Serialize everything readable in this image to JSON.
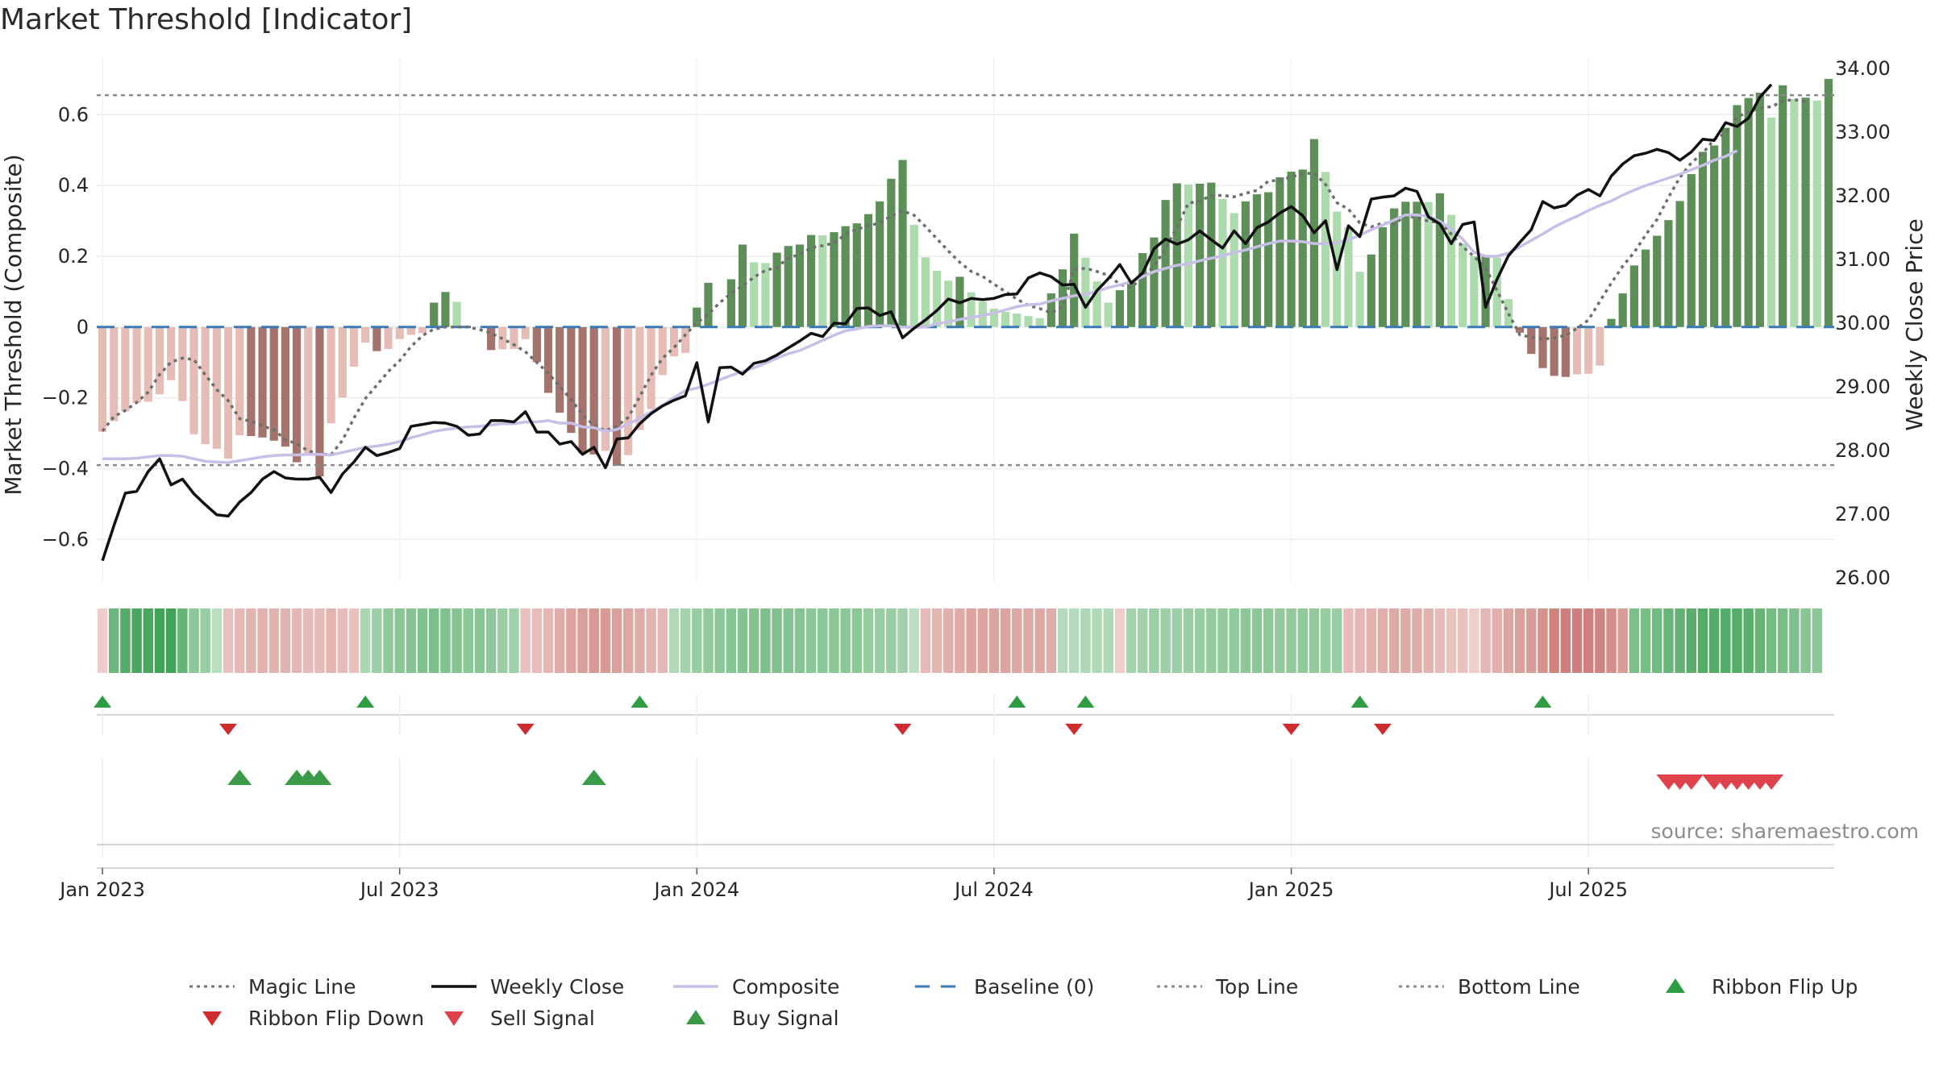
{
  "chart_data": {
    "type": "bar",
    "title": "Market Threshold [Indicator]",
    "ylabel_left": "Market Threshold (Composite)",
    "ylabel_right": "Weekly Close Price",
    "source": "source: sharemaestro.com",
    "ylim_left": [
      -0.72,
      0.76
    ],
    "ylim_right": [
      26.0,
      34.0
    ],
    "left_ticks": [
      {
        "value": 0.6,
        "label": "0.6"
      },
      {
        "value": 0.4,
        "label": "0.4"
      },
      {
        "value": 0.2,
        "label": "0.2"
      },
      {
        "value": 0.0,
        "label": "0"
      },
      {
        "value": -0.2,
        "label": "−0.2"
      },
      {
        "value": -0.4,
        "label": "−0.4"
      },
      {
        "value": -0.6,
        "label": "−0.6"
      }
    ],
    "right_ticks": [
      {
        "value": 34,
        "label": "34.00"
      },
      {
        "value": 33,
        "label": "33.00"
      },
      {
        "value": 32,
        "label": "32.00"
      },
      {
        "value": 31,
        "label": "31.00"
      },
      {
        "value": 30,
        "label": "30.00"
      },
      {
        "value": 29,
        "label": "29.00"
      },
      {
        "value": 28,
        "label": "28.00"
      },
      {
        "value": 27,
        "label": "27.00"
      },
      {
        "value": 26,
        "label": "26.00"
      }
    ],
    "x_ticks": [
      {
        "week": 0.5,
        "label": "Jan 2023"
      },
      {
        "week": 26.5,
        "label": "Jul 2023"
      },
      {
        "week": 52.5,
        "label": "Jan 2024"
      },
      {
        "week": 78.5,
        "label": "Jul 2024"
      },
      {
        "week": 104.5,
        "label": "Jan 2025"
      },
      {
        "week": 130.5,
        "label": "Jul 2025"
      }
    ],
    "top_line": 0.655,
    "bottom_line": -0.39,
    "baseline": 0,
    "composite": [
      -0.296,
      -0.266,
      -0.238,
      -0.214,
      -0.211,
      -0.19,
      -0.15,
      -0.209,
      -0.303,
      -0.331,
      -0.344,
      -0.372,
      -0.306,
      -0.308,
      -0.312,
      -0.321,
      -0.338,
      -0.382,
      -0.356,
      -0.422,
      -0.272,
      -0.199,
      -0.112,
      -0.044,
      -0.068,
      -0.062,
      -0.034,
      -0.022,
      -0.017,
      0.069,
      0.099,
      0.071,
      0.0,
      0.0,
      -0.065,
      -0.063,
      -0.062,
      -0.034,
      -0.099,
      -0.186,
      -0.242,
      -0.299,
      -0.357,
      -0.36,
      -0.35,
      -0.392,
      -0.362,
      -0.291,
      -0.232,
      -0.136,
      -0.083,
      -0.073,
      0.055,
      0.125,
      0.0,
      0.135,
      0.233,
      0.183,
      0.181,
      0.21,
      0.229,
      0.233,
      0.26,
      0.259,
      0.268,
      0.285,
      0.293,
      0.319,
      0.355,
      0.419,
      0.472,
      0.289,
      0.197,
      0.159,
      0.131,
      0.142,
      0.098,
      0.072,
      0.052,
      0.043,
      0.038,
      0.031,
      0.025,
      0.095,
      0.163,
      0.264,
      0.196,
      0.129,
      0.069,
      0.104,
      0.125,
      0.209,
      0.253,
      0.359,
      0.406,
      0.403,
      0.405,
      0.408,
      0.362,
      0.322,
      0.355,
      0.375,
      0.381,
      0.423,
      0.439,
      0.445,
      0.531,
      0.438,
      0.326,
      0.282,
      0.156,
      0.205,
      0.282,
      0.335,
      0.354,
      0.354,
      0.353,
      0.378,
      0.317,
      0.236,
      0.2,
      0.2,
      0.196,
      0.079,
      -0.016,
      -0.076,
      -0.116,
      -0.138,
      -0.141,
      -0.134,
      -0.132,
      -0.109,
      0.023,
      0.095,
      0.174,
      0.219,
      0.258,
      0.302,
      0.356,
      0.432,
      0.495,
      0.513,
      0.563,
      0.627,
      0.647,
      0.662,
      0.592,
      0.683,
      0.644,
      0.648,
      0.64,
      0.701
    ],
    "composite_state": [
      "sell",
      "sell",
      "sell",
      "sell",
      "sell",
      "sell",
      "sell",
      "sell",
      "sell",
      "sell",
      "sell",
      "sell",
      "bear",
      "bear",
      "bear",
      "bear",
      "bear",
      "bear",
      "bear",
      "bear",
      "bear",
      "bear",
      "bear",
      "bear",
      "bear",
      "bear",
      "bear",
      "bear",
      "bear",
      "bull",
      "bull",
      "bull",
      "neutral",
      "neutral",
      "bear",
      "bear",
      "bear",
      "bear",
      "bear",
      "bear",
      "bear",
      "bear",
      "bear",
      "bear",
      "bear",
      "bear",
      "bear",
      "bear",
      "bear",
      "bear",
      "bear",
      "bear",
      "bull",
      "bull",
      "neutral",
      "bull",
      "bull",
      "bull",
      "bull",
      "bull",
      "bull",
      "bull",
      "bull",
      "bull",
      "bull",
      "bull",
      "bull",
      "bull",
      "bull",
      "bull",
      "bull",
      "bull",
      "bull",
      "bull",
      "bull",
      "bull",
      "bull",
      "bull",
      "bull",
      "bull",
      "bull",
      "bull",
      "bull",
      "bull",
      "bull",
      "bull",
      "bull",
      "bull",
      "bull",
      "bull",
      "bull",
      "bull",
      "bull",
      "bull",
      "bull",
      "bull",
      "bull",
      "bull",
      "bull",
      "bull",
      "bull",
      "bull",
      "bull",
      "bull",
      "bull",
      "bull",
      "bull",
      "bull",
      "bull",
      "bull",
      "bull",
      "bull",
      "bull",
      "bull",
      "bull",
      "bull",
      "bull",
      "bull",
      "bull",
      "bull",
      "bull",
      "bull",
      "bull",
      "bull",
      "bear",
      "bear",
      "bear",
      "bear",
      "bear",
      "bear",
      "bear",
      "bear",
      "bull",
      "bull",
      "bull",
      "bull",
      "bull",
      "bull",
      "bull",
      "bull",
      "bull",
      "bull",
      "bull",
      "bull",
      "bull",
      "bull",
      "bull",
      "bull",
      "bull",
      "bull",
      "bull",
      "bull"
    ],
    "weekly_close": [
      26.27,
      26.82,
      27.33,
      27.36,
      27.67,
      27.87,
      27.46,
      27.55,
      27.32,
      27.15,
      26.99,
      26.97,
      27.19,
      27.34,
      27.55,
      27.67,
      27.57,
      27.55,
      27.55,
      27.58,
      27.34,
      27.63,
      27.82,
      28.05,
      27.92,
      27.97,
      28.03,
      28.38,
      28.41,
      28.44,
      28.43,
      28.38,
      28.24,
      28.26,
      28.47,
      28.47,
      28.45,
      28.61,
      28.29,
      28.29,
      28.1,
      28.14,
      27.94,
      28.05,
      27.73,
      28.18,
      28.2,
      28.42,
      28.58,
      28.7,
      28.79,
      28.86,
      29.38,
      28.45,
      29.3,
      29.31,
      29.2,
      29.37,
      29.41,
      29.5,
      29.61,
      29.72,
      29.84,
      29.79,
      30.0,
      29.99,
      30.23,
      30.24,
      30.12,
      30.18,
      29.77,
      29.92,
      30.05,
      30.2,
      30.38,
      30.32,
      30.39,
      30.37,
      30.39,
      30.45,
      30.46,
      30.71,
      30.79,
      30.73,
      30.6,
      30.61,
      30.25,
      30.51,
      30.7,
      30.92,
      30.63,
      30.79,
      31.17,
      31.32,
      31.24,
      31.31,
      31.45,
      31.31,
      31.18,
      31.45,
      31.25,
      31.5,
      31.59,
      31.73,
      31.83,
      31.69,
      31.42,
      31.61,
      30.84,
      31.53,
      31.36,
      31.95,
      31.98,
      32.0,
      32.12,
      32.07,
      31.67,
      31.56,
      31.25,
      31.55,
      31.59,
      30.25,
      30.69,
      31.06,
      31.27,
      31.47,
      31.91,
      31.81,
      31.85,
      32.01,
      32.1,
      32.0,
      32.31,
      32.5,
      32.63,
      32.67,
      32.73,
      32.68,
      32.56,
      32.69,
      32.89,
      32.87,
      33.15,
      33.09,
      33.22,
      33.55,
      33.75
    ],
    "composite_line": [
      27.87,
      27.87,
      27.87,
      27.88,
      27.9,
      27.92,
      27.92,
      27.91,
      27.87,
      27.83,
      27.82,
      27.81,
      27.84,
      27.87,
      27.9,
      27.92,
      27.93,
      27.93,
      27.94,
      27.94,
      27.93,
      27.97,
      28.01,
      28.05,
      28.07,
      28.1,
      28.14,
      28.2,
      28.25,
      28.3,
      28.33,
      28.35,
      28.37,
      28.38,
      28.4,
      28.42,
      28.42,
      28.45,
      28.45,
      28.47,
      28.43,
      28.43,
      28.37,
      28.36,
      28.3,
      28.33,
      28.42,
      28.5,
      28.61,
      28.71,
      28.83,
      28.94,
      28.98,
      29.04,
      29.11,
      29.18,
      29.24,
      29.3,
      29.37,
      29.45,
      29.52,
      29.57,
      29.65,
      29.73,
      29.81,
      29.88,
      29.91,
      29.95,
      29.96,
      29.96,
      29.94,
      29.93,
      29.94,
      29.99,
      30.02,
      30.06,
      30.09,
      30.12,
      30.16,
      30.21,
      30.26,
      30.29,
      30.3,
      30.35,
      30.39,
      30.43,
      30.45,
      30.5,
      30.56,
      30.6,
      30.65,
      30.73,
      30.81,
      30.86,
      30.91,
      30.93,
      30.98,
      31.02,
      31.06,
      31.11,
      31.15,
      31.2,
      31.25,
      31.29,
      31.29,
      31.28,
      31.25,
      31.25,
      31.26,
      31.31,
      31.38,
      31.47,
      31.54,
      31.62,
      31.7,
      31.7,
      31.68,
      31.6,
      31.48,
      31.32,
      31.11,
      31.05,
      31.05,
      31.1,
      31.2,
      31.3,
      31.4,
      31.51,
      31.6,
      31.68,
      31.77,
      31.85,
      31.92,
      32.01,
      32.09,
      32.16,
      32.22,
      32.28,
      32.34,
      32.41,
      32.48,
      32.56,
      32.62,
      32.71
    ],
    "magic_line": [
      -0.294,
      -0.253,
      -0.236,
      -0.213,
      -0.184,
      -0.134,
      -0.099,
      -0.088,
      -0.092,
      -0.135,
      -0.177,
      -0.208,
      -0.259,
      -0.266,
      -0.28,
      -0.29,
      -0.318,
      -0.33,
      -0.35,
      -0.358,
      -0.361,
      -0.32,
      -0.257,
      -0.202,
      -0.164,
      -0.126,
      -0.095,
      -0.055,
      -0.024,
      -0.006,
      0.0,
      0.0,
      0.0,
      -0.007,
      -0.017,
      -0.033,
      -0.05,
      -0.07,
      -0.1,
      -0.13,
      -0.168,
      -0.205,
      -0.247,
      -0.278,
      -0.293,
      -0.28,
      -0.255,
      -0.197,
      -0.136,
      -0.088,
      -0.058,
      -0.022,
      0.012,
      0.036,
      0.069,
      0.095,
      0.116,
      0.141,
      0.16,
      0.168,
      0.196,
      0.204,
      0.224,
      0.23,
      0.237,
      0.262,
      0.276,
      0.286,
      0.294,
      0.314,
      0.328,
      0.316,
      0.284,
      0.249,
      0.215,
      0.183,
      0.157,
      0.143,
      0.121,
      0.1,
      0.079,
      0.061,
      0.052,
      0.04,
      0.057,
      0.163,
      0.166,
      0.157,
      0.146,
      0.121,
      0.111,
      0.143,
      0.172,
      0.221,
      0.283,
      0.35,
      0.356,
      0.371,
      0.372,
      0.368,
      0.378,
      0.386,
      0.412,
      0.415,
      0.424,
      0.433,
      0.435,
      0.403,
      0.351,
      0.333,
      0.294,
      0.283,
      0.294,
      0.291,
      0.314,
      0.309,
      0.299,
      0.295,
      0.263,
      0.227,
      0.199,
      0.167,
      0.103,
      0.038,
      -0.022,
      -0.029,
      -0.034,
      -0.031,
      -0.023,
      -0.004,
      0.02,
      0.073,
      0.124,
      0.172,
      0.211,
      0.26,
      0.304,
      0.366,
      0.423,
      0.464,
      0.491,
      0.53,
      0.548,
      0.594,
      0.607,
      0.62,
      0.622,
      0.639,
      0.642,
      0.638
    ],
    "ribbon_tone": [
      -0.15,
      0.66,
      0.8,
      0.85,
      0.85,
      0.9,
      0.9,
      0.7,
      0.49,
      0.42,
      0.24,
      -0.25,
      -0.31,
      -0.35,
      -0.37,
      -0.35,
      -0.35,
      -0.31,
      -0.3,
      -0.29,
      -0.34,
      -0.29,
      -0.25,
      0.33,
      0.4,
      0.47,
      0.51,
      0.53,
      0.55,
      0.58,
      0.56,
      0.53,
      0.5,
      0.52,
      0.48,
      0.42,
      0.38,
      -0.25,
      -0.28,
      -0.33,
      -0.4,
      -0.46,
      -0.51,
      -0.55,
      -0.54,
      -0.5,
      -0.45,
      -0.4,
      -0.34,
      -0.31,
      0.29,
      0.36,
      0.43,
      0.46,
      0.49,
      0.52,
      0.53,
      0.55,
      0.57,
      0.56,
      0.54,
      0.53,
      0.5,
      0.5,
      0.5,
      0.5,
      0.5,
      0.45,
      0.43,
      0.43,
      0.38,
      0.23,
      -0.29,
      -0.33,
      -0.38,
      -0.42,
      -0.47,
      -0.47,
      -0.47,
      -0.47,
      -0.44,
      -0.42,
      -0.42,
      -0.41,
      0.28,
      0.28,
      0.31,
      0.29,
      0.3,
      -0.15,
      0.36,
      0.38,
      0.4,
      0.41,
      0.41,
      0.42,
      0.43,
      0.45,
      0.46,
      0.47,
      0.48,
      0.49,
      0.48,
      0.46,
      0.46,
      0.47,
      0.46,
      0.44,
      0.42,
      -0.3,
      -0.32,
      -0.35,
      -0.38,
      -0.42,
      -0.42,
      -0.41,
      -0.35,
      -0.29,
      -0.25,
      -0.25,
      -0.15,
      -0.32,
      -0.38,
      -0.45,
      -0.5,
      -0.52,
      -0.6,
      -0.72,
      -0.74,
      -0.74,
      -0.73,
      -0.7,
      -0.62,
      -0.52,
      0.58,
      0.6,
      0.64,
      0.69,
      0.72,
      0.77,
      0.8,
      0.8,
      0.8,
      0.79,
      0.76,
      0.7,
      0.62,
      0.6,
      0.57,
      0.52,
      0.5
    ],
    "ribbon_flip_up": [
      0.5,
      23.5,
      47.5,
      80.5,
      86.5,
      110.5,
      126.5
    ],
    "ribbon_flip_down": [
      11.5,
      37.5,
      70.5,
      85.5,
      104.5,
      112.5
    ],
    "buy_signal": [
      12,
      17,
      18,
      19,
      43
    ],
    "sell_signal": [
      137,
      138,
      139,
      141,
      142,
      143,
      144,
      145,
      146
    ],
    "legend": [
      {
        "label": "Magic Line",
        "kind": "dotted",
        "color": "#757575"
      },
      {
        "label": "Weekly Close",
        "kind": "line",
        "color": "#111111"
      },
      {
        "label": "Composite",
        "kind": "line",
        "color": "#c7bfe6"
      },
      {
        "label": "Baseline (0)",
        "kind": "dashed",
        "color": "#3b7ab8"
      },
      {
        "label": "Top Line",
        "kind": "dotted",
        "color": "#8a8a8a"
      },
      {
        "label": "Bottom Line",
        "kind": "dotted",
        "color": "#8a8a8a"
      },
      {
        "label": "Ribbon Flip Up",
        "kind": "up-triangle",
        "color": "#2e9c42"
      },
      {
        "label": "Ribbon Flip Down",
        "kind": "down-triangle",
        "color": "#cf2d2d"
      },
      {
        "label": "Sell Signal",
        "kind": "down-triangle",
        "color": "#e0424b"
      },
      {
        "label": "Buy Signal",
        "kind": "up-triangle",
        "color": "#3a9a48"
      }
    ],
    "colors": {
      "sell": "#f2c10d",
      "bear_dark": "#a3736c",
      "bear_light": "#e6bcb6",
      "bull_dark": "#5d8f58",
      "bull_light": "#addbae",
      "weekly_close": "#111111",
      "composite_line": "#c7bfe6",
      "magic_line": "#6e6e6e",
      "baseline": "#3b7ab8",
      "threshold_lines": "#8a8a8a"
    }
  }
}
